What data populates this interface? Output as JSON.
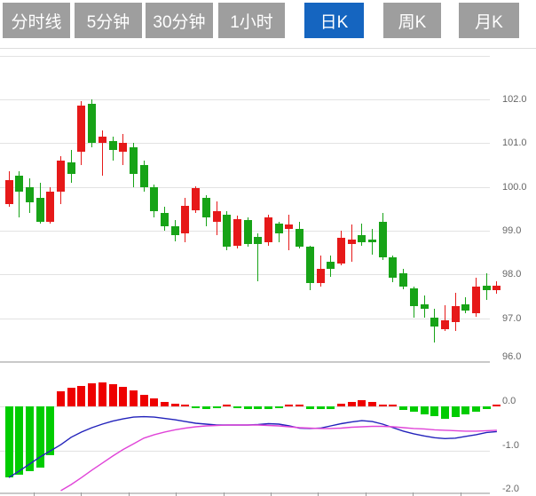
{
  "tab_bar": {
    "items": [
      {
        "name": "tab-time-line",
        "label": "分时线",
        "active": false
      },
      {
        "name": "tab-5min",
        "label": "5分钟",
        "active": false
      },
      {
        "name": "tab-30min",
        "label": "30分钟",
        "active": false
      },
      {
        "name": "tab-1hour",
        "label": "1小时",
        "active": false
      },
      {
        "name": "tab-daily-k",
        "label": "日K",
        "active": true
      },
      {
        "name": "tab-weekly-k",
        "label": "周K",
        "active": false
      },
      {
        "name": "tab-monthly-k",
        "label": "月K",
        "active": false
      }
    ]
  },
  "colors": {
    "up_candle": "#e61919",
    "down_candle": "#17a317",
    "hist_up": "#ee0000",
    "hist_down": "#00cc00",
    "dif_line": "#2222bb",
    "dea_line": "#e044d8",
    "tab_bg": "#9e9e9e",
    "tab_active_bg": "#1565c0",
    "tab_text": "#ffffff",
    "grid": "#e2e2e2",
    "separator": "#c9c9c9",
    "axis_text": "#666666"
  },
  "chart_data": {
    "type": "candlestick",
    "title": "",
    "panes": [
      "price-candles",
      "macd-indicator"
    ],
    "legend_position": "none",
    "grid": true,
    "price_axis": {
      "side": "right",
      "labels": [
        "102.0",
        "101.0",
        "100.0",
        "99.0",
        "98.0",
        "97.0",
        "96.0"
      ],
      "values": [
        102,
        101,
        100,
        99,
        98,
        97,
        96
      ],
      "range": [
        95.8,
        103.2
      ]
    },
    "macd_axis": {
      "side": "right",
      "labels": [
        "0.0",
        "-1.0",
        "-2.0"
      ],
      "values": [
        0,
        -1,
        -2
      ],
      "range": [
        -2.1,
        0.9
      ]
    },
    "candles_ohlc": [
      [
        99.6,
        100.35,
        99.55,
        100.15
      ],
      [
        100.25,
        100.35,
        99.3,
        99.9
      ],
      [
        100.0,
        100.2,
        99.4,
        99.65
      ],
      [
        99.75,
        100.1,
        99.15,
        99.2
      ],
      [
        99.2,
        100.0,
        99.15,
        99.9
      ],
      [
        99.9,
        100.7,
        99.6,
        100.6
      ],
      [
        100.55,
        100.85,
        100.1,
        100.3
      ],
      [
        100.8,
        101.95,
        100.5,
        101.85
      ],
      [
        101.9,
        102.0,
        100.9,
        101.0
      ],
      [
        101.0,
        101.3,
        100.25,
        101.15
      ],
      [
        101.05,
        101.15,
        100.6,
        100.85
      ],
      [
        100.8,
        101.2,
        100.5,
        101.0
      ],
      [
        100.9,
        101.0,
        100.0,
        100.3
      ],
      [
        100.5,
        100.6,
        99.9,
        100.0
      ],
      [
        100.0,
        100.05,
        99.3,
        99.45
      ],
      [
        99.4,
        99.55,
        99.0,
        99.1
      ],
      [
        99.1,
        99.25,
        98.75,
        98.9
      ],
      [
        98.93,
        99.74,
        98.73,
        99.57
      ],
      [
        99.47,
        100.02,
        99.4,
        99.97
      ],
      [
        99.74,
        99.81,
        99.1,
        99.3
      ],
      [
        99.2,
        99.67,
        98.9,
        99.44
      ],
      [
        99.37,
        99.44,
        98.56,
        98.63
      ],
      [
        98.66,
        99.34,
        98.59,
        99.27
      ],
      [
        99.24,
        99.3,
        98.63,
        98.7
      ],
      [
        98.86,
        98.93,
        97.85,
        98.7
      ],
      [
        98.73,
        99.37,
        98.66,
        99.3
      ],
      [
        99.16,
        99.2,
        98.74,
        98.93
      ],
      [
        99.03,
        99.37,
        98.56,
        99.13
      ],
      [
        99.03,
        99.2,
        98.6,
        98.63
      ],
      [
        98.63,
        98.66,
        97.64,
        97.81
      ],
      [
        97.81,
        98.43,
        97.71,
        98.12
      ],
      [
        98.29,
        98.42,
        97.95,
        98.12
      ],
      [
        98.25,
        99.0,
        98.21,
        98.83
      ],
      [
        98.7,
        99.13,
        98.29,
        98.8
      ],
      [
        98.9,
        99.17,
        98.66,
        98.73
      ],
      [
        98.8,
        99.03,
        98.46,
        98.74
      ],
      [
        99.2,
        99.41,
        98.32,
        98.39
      ],
      [
        98.39,
        98.43,
        97.82,
        97.92
      ],
      [
        98.02,
        98.12,
        97.65,
        97.72
      ],
      [
        97.68,
        97.71,
        97.0,
        97.27
      ],
      [
        97.31,
        97.51,
        97.01,
        97.21
      ],
      [
        97.01,
        97.21,
        96.45,
        96.81
      ],
      [
        96.75,
        97.3,
        96.7,
        96.95
      ],
      [
        96.91,
        97.58,
        96.7,
        97.27
      ],
      [
        97.31,
        97.47,
        97.11,
        97.17
      ],
      [
        97.11,
        97.92,
        97.03,
        97.72
      ],
      [
        97.74,
        98.02,
        97.41,
        97.64
      ],
      [
        97.64,
        97.85,
        97.55,
        97.74
      ]
    ],
    "macd": {
      "histogram": [
        -1.62,
        -1.55,
        -1.48,
        -1.4,
        -1.1,
        0.36,
        0.43,
        0.48,
        0.54,
        0.56,
        0.51,
        0.45,
        0.38,
        0.27,
        0.18,
        0.11,
        0.07,
        0.03,
        -0.04,
        -0.05,
        -0.04,
        0.02,
        -0.03,
        -0.06,
        -0.05,
        -0.05,
        -0.04,
        0.01,
        0.04,
        -0.05,
        -0.06,
        -0.06,
        0.07,
        0.1,
        0.15,
        0.11,
        0.05,
        0.03,
        -0.08,
        -0.12,
        -0.17,
        -0.22,
        -0.27,
        -0.24,
        -0.18,
        -0.12,
        -0.06,
        0.05
      ],
      "dif": [
        -1.62,
        -1.47,
        -1.31,
        -1.15,
        -1.01,
        -0.87,
        -0.7,
        -0.58,
        -0.48,
        -0.4,
        -0.33,
        -0.28,
        -0.24,
        -0.23,
        -0.24,
        -0.27,
        -0.3,
        -0.34,
        -0.38,
        -0.4,
        -0.42,
        -0.42,
        -0.42,
        -0.42,
        -0.41,
        -0.39,
        -0.4,
        -0.44,
        -0.49,
        -0.5,
        -0.49,
        -0.44,
        -0.39,
        -0.35,
        -0.32,
        -0.34,
        -0.4,
        -0.48,
        -0.56,
        -0.62,
        -0.67,
        -0.71,
        -0.73,
        -0.72,
        -0.68,
        -0.64,
        -0.59,
        -0.57
      ],
      "dea": [
        null,
        null,
        null,
        null,
        null,
        -1.92,
        -1.78,
        -1.62,
        -1.45,
        -1.29,
        -1.13,
        -0.98,
        -0.85,
        -0.72,
        -0.64,
        -0.58,
        -0.53,
        -0.49,
        -0.46,
        -0.44,
        -0.43,
        -0.42,
        -0.42,
        -0.42,
        -0.42,
        -0.43,
        -0.44,
        -0.46,
        -0.48,
        -0.49,
        -0.5,
        -0.5,
        -0.49,
        -0.47,
        -0.46,
        -0.45,
        -0.45,
        -0.46,
        -0.48,
        -0.5,
        -0.51,
        -0.53,
        -0.54,
        -0.55,
        -0.56,
        -0.56,
        -0.55,
        -0.54
      ]
    }
  }
}
